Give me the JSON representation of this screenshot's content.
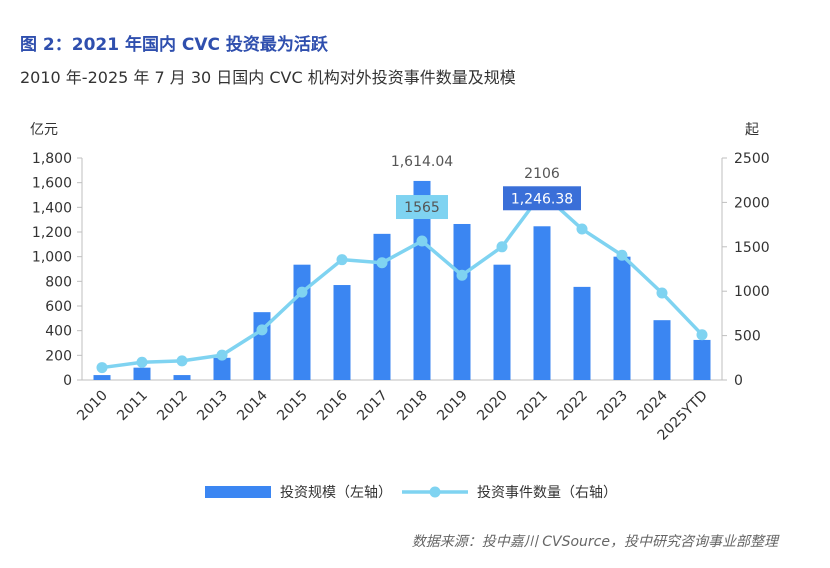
{
  "figure": {
    "title": "图 2：2021 年国内 CVC 投资最为活跃",
    "subtitle": "2010 年-2025 年 7 月 30 日国内 CVC 机构对外投资事件数量及规模",
    "source": "数据来源：投中嘉川 CVSource，投中研究咨询事业部整理"
  },
  "colors": {
    "bar": "#3b86f2",
    "line": "#7fd3f1",
    "callout_line": "#7fd3f1",
    "callout_bar": "#3a6fd8"
  },
  "chart_data": {
    "type": "bar",
    "categories": [
      "2010",
      "2011",
      "2012",
      "2013",
      "2014",
      "2015",
      "2016",
      "2017",
      "2018",
      "2019",
      "2020",
      "2021",
      "2022",
      "2023",
      "2024",
      "2025YTD"
    ],
    "series": [
      {
        "name": "投资规模（左轴）",
        "type": "bar",
        "axis": "left",
        "values": [
          40,
          100,
          40,
          180,
          550,
          935,
          770,
          1185,
          1614.04,
          1265,
          935,
          1246.38,
          755,
          1000,
          485,
          325
        ]
      },
      {
        "name": "投资事件数量（右轴）",
        "type": "line",
        "axis": "right",
        "values": [
          140,
          200,
          215,
          280,
          565,
          990,
          1355,
          1320,
          1565,
          1180,
          1500,
          2106,
          1700,
          1405,
          980,
          510
        ]
      }
    ],
    "y_left": {
      "label": "亿元",
      "min": 0,
      "max": 1800,
      "ticks": [
        0,
        200,
        400,
        600,
        800,
        1000,
        1200,
        1400,
        1600,
        1800
      ],
      "tick_labels": [
        "0",
        "200",
        "400",
        "600",
        "800",
        "1,000",
        "1,200",
        "1,400",
        "1,600",
        "1,800"
      ]
    },
    "y_right": {
      "label": "起",
      "min": 0,
      "max": 2500,
      "ticks": [
        0,
        500,
        1000,
        1500,
        2000,
        2500
      ],
      "tick_labels": [
        "0",
        "500",
        "1000",
        "1500",
        "2000",
        "2500"
      ]
    },
    "annotations": [
      {
        "series": 0,
        "index": 8,
        "text": "1,614.04",
        "style": "plain"
      },
      {
        "series": 1,
        "index": 8,
        "text": "1565",
        "style": "callout-light"
      },
      {
        "series": 1,
        "index": 11,
        "text": "2106",
        "style": "plain"
      },
      {
        "series": 0,
        "index": 11,
        "text": "1,246.38",
        "style": "callout-dark"
      }
    ],
    "legend": {
      "position": "bottom"
    }
  }
}
